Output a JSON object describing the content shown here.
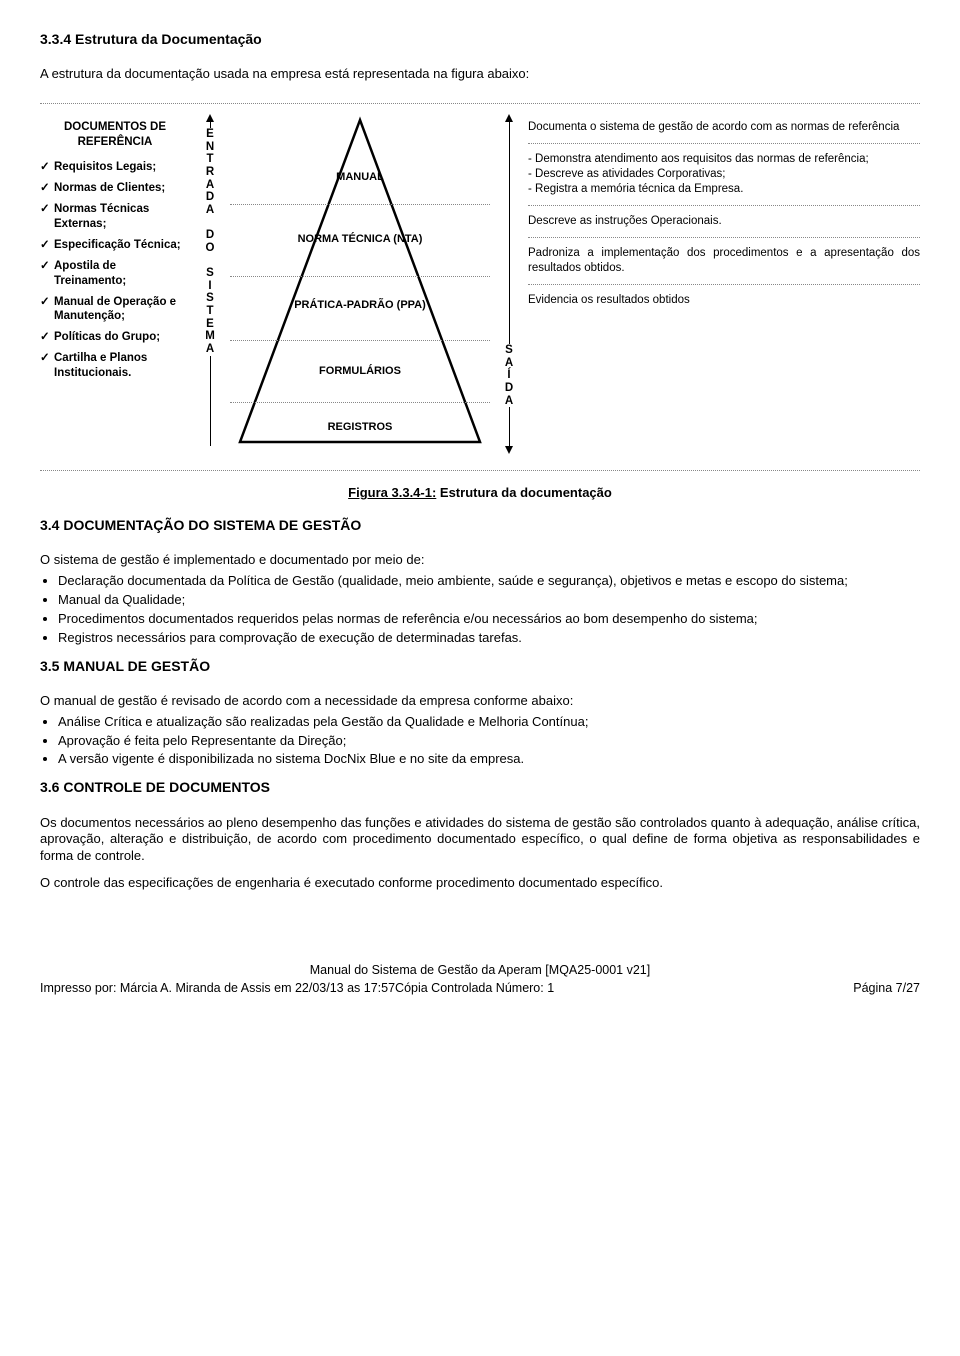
{
  "section334": {
    "title": "3.3.4 Estrutura da Documentação",
    "intro": "A estrutura da documentação usada na empresa está representada na figura abaixo:"
  },
  "diagram": {
    "docs": {
      "header": "DOCUMENTOS DE REFERÊNCIA",
      "items": [
        "Requisitos Legais;",
        "Normas de Clientes;",
        "Normas Técnicas Externas;",
        "Especificação Técnica;",
        "Apostila de Treinamento;",
        "Manual de Operação e Manutenção;",
        "Políticas do Grupo;",
        "Cartilha e Planos Institucionais."
      ]
    },
    "entradaLetters": [
      "E",
      "N",
      "T",
      "R",
      "A",
      "D",
      "A",
      "",
      "D",
      "O",
      "",
      "S",
      "I",
      "S",
      "T",
      "E",
      "M",
      "A"
    ],
    "saidaLetters": [
      "S",
      "A",
      "Í",
      "D",
      "A"
    ],
    "pyramid": {
      "layers": [
        "MANUAL",
        "NORMA TÉCNICA (NTA)",
        "PRÁTICA-PADRÃO (PPA)",
        "FORMULÁRIOS",
        "REGISTROS"
      ]
    },
    "outputs": [
      "Documenta o sistema de gestão de acordo com as normas de referência",
      "- Demonstra atendimento aos requisitos das normas de referência;\n- Descreve as atividades Corporativas;\n- Registra a memória técnica da Empresa.",
      "Descreve as instruções Operacionais.",
      "Padroniza a implementação dos procedimentos e a apresentação dos resultados obtidos.",
      "Evidencia os resultados obtidos"
    ]
  },
  "figureCaption": {
    "label": "Figura 3.3.4-1:",
    "text": " Estrutura da documentação"
  },
  "section34": {
    "title": "3.4 DOCUMENTAÇÃO DO SISTEMA DE GESTÃO",
    "lead": "O sistema de gestão é implementado e documentado por meio de:",
    "bullets": [
      "Declaração documentada da Política de Gestão (qualidade, meio ambiente, saúde e segurança), objetivos e metas e escopo do sistema;",
      "Manual da Qualidade;",
      "Procedimentos documentados requeridos pelas normas de referência e/ou necessários ao bom desempenho do sistema;",
      "Registros necessários para comprovação de execução de determinadas tarefas."
    ]
  },
  "section35": {
    "title": "3.5 MANUAL DE GESTÃO",
    "lead": "O manual de gestão é revisado de acordo com a necessidade da empresa conforme abaixo:",
    "bullets": [
      "Análise Crítica e atualização são realizadas pela Gestão da Qualidade e Melhoria Contínua;",
      "Aprovação é feita pelo Representante da Direção;",
      "A versão vigente é disponibilizada no sistema DocNix Blue e no site da empresa."
    ]
  },
  "section36": {
    "title": "3.6 CONTROLE DE DOCUMENTOS",
    "p1": "Os documentos necessários ao pleno desempenho das funções e atividades do sistema de gestão são controlados quanto à adequação, análise crítica, aprovação, alteração e distribuição, de acordo com procedimento documentado específico, o qual define de forma objetiva as responsabilidades e forma de controle.",
    "p2": "O controle das especificações de engenharia é executado conforme procedimento documentado específico."
  },
  "footer": {
    "line1": "Manual do Sistema de Gestão da Aperam [MQA25-0001 v21]",
    "left": "Impresso por: Márcia A. Miranda de Assis em 22/03/13 as 17:57Cópia Controlada Número: 1",
    "right": "Página 7/27"
  },
  "colors": {
    "text": "#000000",
    "dotted": "#888888"
  }
}
